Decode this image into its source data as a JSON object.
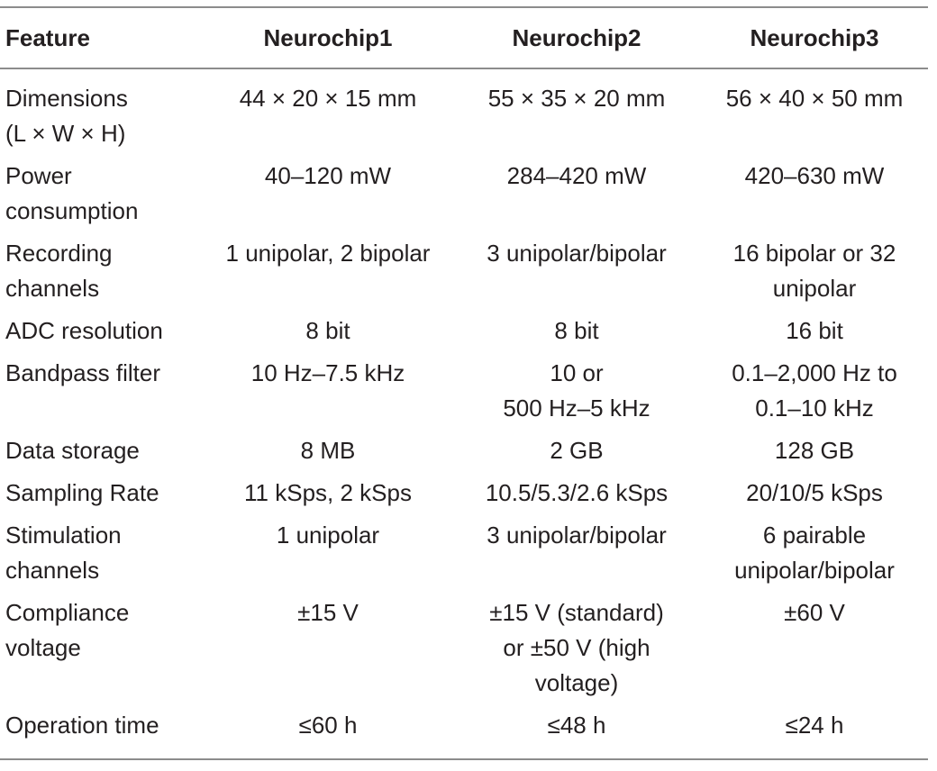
{
  "header": {
    "feature": "Feature",
    "col1": "Neurochip1",
    "col2": "Neurochip2",
    "col3": "Neurochip3"
  },
  "rows": [
    {
      "feature": [
        "Dimensions",
        "(L × W × H)"
      ],
      "n1": [
        "44 × 20 × 15 mm"
      ],
      "n2": [
        "55 × 35 × 20 mm"
      ],
      "n3": [
        "56 × 40 × 50 mm"
      ]
    },
    {
      "feature": [
        "Power",
        "consumption"
      ],
      "n1": [
        "40–120 mW"
      ],
      "n2": [
        "284–420 mW"
      ],
      "n3": [
        "420–630 mW"
      ]
    },
    {
      "feature": [
        "Recording",
        "channels"
      ],
      "n1": [
        "1 unipolar, 2 bipolar"
      ],
      "n2": [
        "3 unipolar/bipolar"
      ],
      "n3": [
        "16 bipolar or 32",
        "unipolar"
      ]
    },
    {
      "feature": [
        "ADC resolution"
      ],
      "n1": [
        "8 bit"
      ],
      "n2": [
        "8 bit"
      ],
      "n3": [
        "16 bit"
      ]
    },
    {
      "feature": [
        "Bandpass filter"
      ],
      "n1": [
        "10 Hz–7.5 kHz"
      ],
      "n2": [
        "10 or",
        "500 Hz–5 kHz"
      ],
      "n3": [
        "0.1–2,000 Hz to",
        "0.1–10 kHz"
      ]
    },
    {
      "feature": [
        "Data storage"
      ],
      "n1": [
        "8 MB"
      ],
      "n2": [
        "2 GB"
      ],
      "n3": [
        "128 GB"
      ]
    },
    {
      "feature": [
        "Sampling Rate"
      ],
      "n1": [
        "11 kSps, 2 kSps"
      ],
      "n2": [
        "10.5/5.3/2.6 kSps"
      ],
      "n3": [
        "20/10/5 kSps"
      ]
    },
    {
      "feature": [
        "Stimulation",
        "channels"
      ],
      "n1": [
        "1 unipolar"
      ],
      "n2": [
        "3 unipolar/bipolar"
      ],
      "n3": [
        "6 pairable",
        "unipolar/bipolar"
      ]
    },
    {
      "feature": [
        "Compliance",
        "voltage"
      ],
      "n1": [
        "±15 V"
      ],
      "n2": [
        "±15 V (standard)",
        "or ±50 V (high",
        "voltage)"
      ],
      "n3": [
        "±60 V"
      ]
    },
    {
      "feature": [
        "Operation time"
      ],
      "n1": [
        "≤60 h"
      ],
      "n2": [
        "≤48 h"
      ],
      "n3": [
        "≤24 h"
      ]
    }
  ]
}
